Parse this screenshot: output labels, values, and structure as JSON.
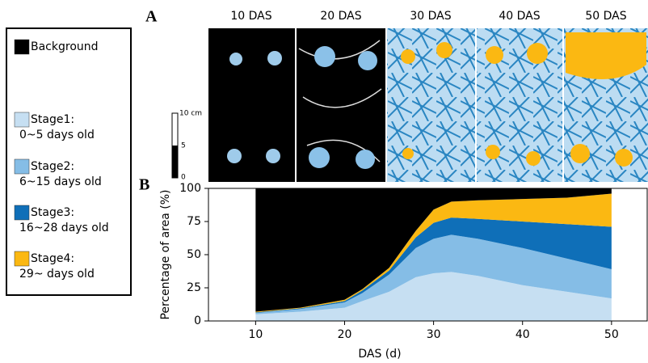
{
  "chart_data": {
    "type": "stacked_area",
    "panel_a": {
      "label": "A",
      "panels": [
        "10 DAS",
        "20 DAS",
        "30 DAS",
        "40 DAS",
        "50 DAS"
      ],
      "scale_bar": [
        "10 cm",
        "5",
        "0"
      ]
    },
    "panel_b": {
      "label": "B"
    },
    "x_label": "DAS (d)",
    "y_label": "Percentage of area (%)",
    "x": [
      10,
      15,
      20,
      22,
      25,
      28,
      30,
      32,
      35,
      40,
      45,
      50
    ],
    "series": [
      {
        "name": "Stage1:",
        "age": "0~5 days old",
        "color": "#c6dff2",
        "values": [
          5,
          7,
          10,
          15,
          22,
          33,
          36,
          37,
          34,
          27,
          22,
          17
        ]
      },
      {
        "name": "Stage2:",
        "age": " 6~15 days old",
        "color": "#85bde6",
        "values": [
          1,
          2,
          4,
          6,
          13,
          22,
          26,
          28,
          28,
          28,
          25,
          22
        ]
      },
      {
        "name": "Stage3:",
        "age": "16~28 days old",
        "color": "#0f6fb8",
        "values": [
          0.5,
          0.5,
          1,
          2,
          3,
          8,
          12,
          13,
          15,
          20,
          26,
          32
        ]
      },
      {
        "name": "Stage4:",
        "age": "29~  days old",
        "color": "#fbb812",
        "values": [
          0.5,
          0.5,
          1,
          1,
          2,
          5,
          10,
          12,
          14,
          17,
          20,
          25
        ]
      },
      {
        "name": "Background",
        "color": "#000000",
        "values": [
          93,
          90,
          84,
          76,
          60,
          32,
          16,
          10,
          9,
          8,
          7,
          4
        ]
      }
    ],
    "xlim": [
      4.7,
      54.1
    ],
    "xticks": [
      10,
      20,
      30,
      40,
      50
    ],
    "ylim": [
      0,
      100
    ],
    "yticks": [
      0,
      25,
      50,
      75,
      100
    ]
  }
}
